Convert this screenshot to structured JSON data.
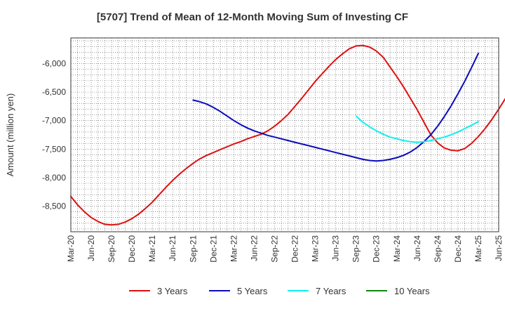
{
  "chart_data": {
    "type": "line",
    "title": "[5707]  Trend of Mean of 12-Month Moving Sum of Investing CF",
    "xlabel": "",
    "ylabel": "Amount (million yen)",
    "ylim": [
      -8950,
      -5550
    ],
    "yticks": [
      -6000,
      -6500,
      -7000,
      -7500,
      -8000,
      -8500
    ],
    "ytick_labels": [
      "-6,000",
      "-6,500",
      "-7,000",
      "-7,500",
      "-8,000",
      "-8,500"
    ],
    "x_categories": [
      "Mar-20",
      "Jun-20",
      "Sep-20",
      "Dec-20",
      "Mar-21",
      "Jun-21",
      "Sep-21",
      "Dec-21",
      "Mar-22",
      "Jun-22",
      "Sep-22",
      "Dec-22",
      "Mar-23",
      "Jun-23",
      "Sep-23",
      "Dec-23",
      "Mar-24",
      "Jun-24",
      "Sep-24",
      "Dec-24",
      "Mar-25",
      "Jun-25"
    ],
    "grid": true,
    "legend_position": "bottom",
    "series": [
      {
        "name": "3 Years",
        "color": "#dd1111",
        "start_index": 0,
        "values": [
          -8330,
          -8480,
          -8600,
          -8700,
          -8770,
          -8820,
          -8830,
          -8820,
          -8780,
          -8720,
          -8640,
          -8540,
          -8430,
          -8300,
          -8170,
          -8050,
          -7940,
          -7840,
          -7750,
          -7670,
          -7610,
          -7560,
          -7510,
          -7460,
          -7410,
          -7370,
          -7320,
          -7280,
          -7240,
          -7180,
          -7100,
          -7000,
          -6890,
          -6750,
          -6610,
          -6460,
          -6310,
          -6180,
          -6050,
          -5930,
          -5830,
          -5740,
          -5690,
          -5680,
          -5710,
          -5780,
          -5890,
          -6060,
          -6230,
          -6410,
          -6610,
          -6810,
          -7030,
          -7250,
          -7390,
          -7480,
          -7520,
          -7530,
          -7490,
          -7400,
          -7280,
          -7140,
          -6980,
          -6800,
          -6610,
          -6420
        ]
      },
      {
        "name": "5 Years",
        "color": "#0b0bbb",
        "start_index": 18,
        "values": [
          -6640,
          -6670,
          -6710,
          -6770,
          -6840,
          -6920,
          -7000,
          -7070,
          -7130,
          -7180,
          -7220,
          -7260,
          -7290,
          -7320,
          -7350,
          -7380,
          -7410,
          -7440,
          -7470,
          -7500,
          -7530,
          -7560,
          -7590,
          -7620,
          -7650,
          -7680,
          -7700,
          -7710,
          -7700,
          -7680,
          -7650,
          -7610,
          -7550,
          -7470,
          -7370,
          -7250,
          -7100,
          -6930,
          -6740,
          -6530,
          -6310,
          -6070,
          -5820
        ]
      },
      {
        "name": "7 Years",
        "color": "#11eeee",
        "start_index": 42,
        "values": [
          -6920,
          -7030,
          -7110,
          -7180,
          -7240,
          -7290,
          -7320,
          -7350,
          -7370,
          -7380,
          -7370,
          -7350,
          -7320,
          -7290,
          -7250,
          -7200,
          -7140,
          -7080,
          -7020
        ]
      },
      {
        "name": "10 Years",
        "color": "#118811",
        "start_index": 0,
        "values": []
      }
    ]
  }
}
